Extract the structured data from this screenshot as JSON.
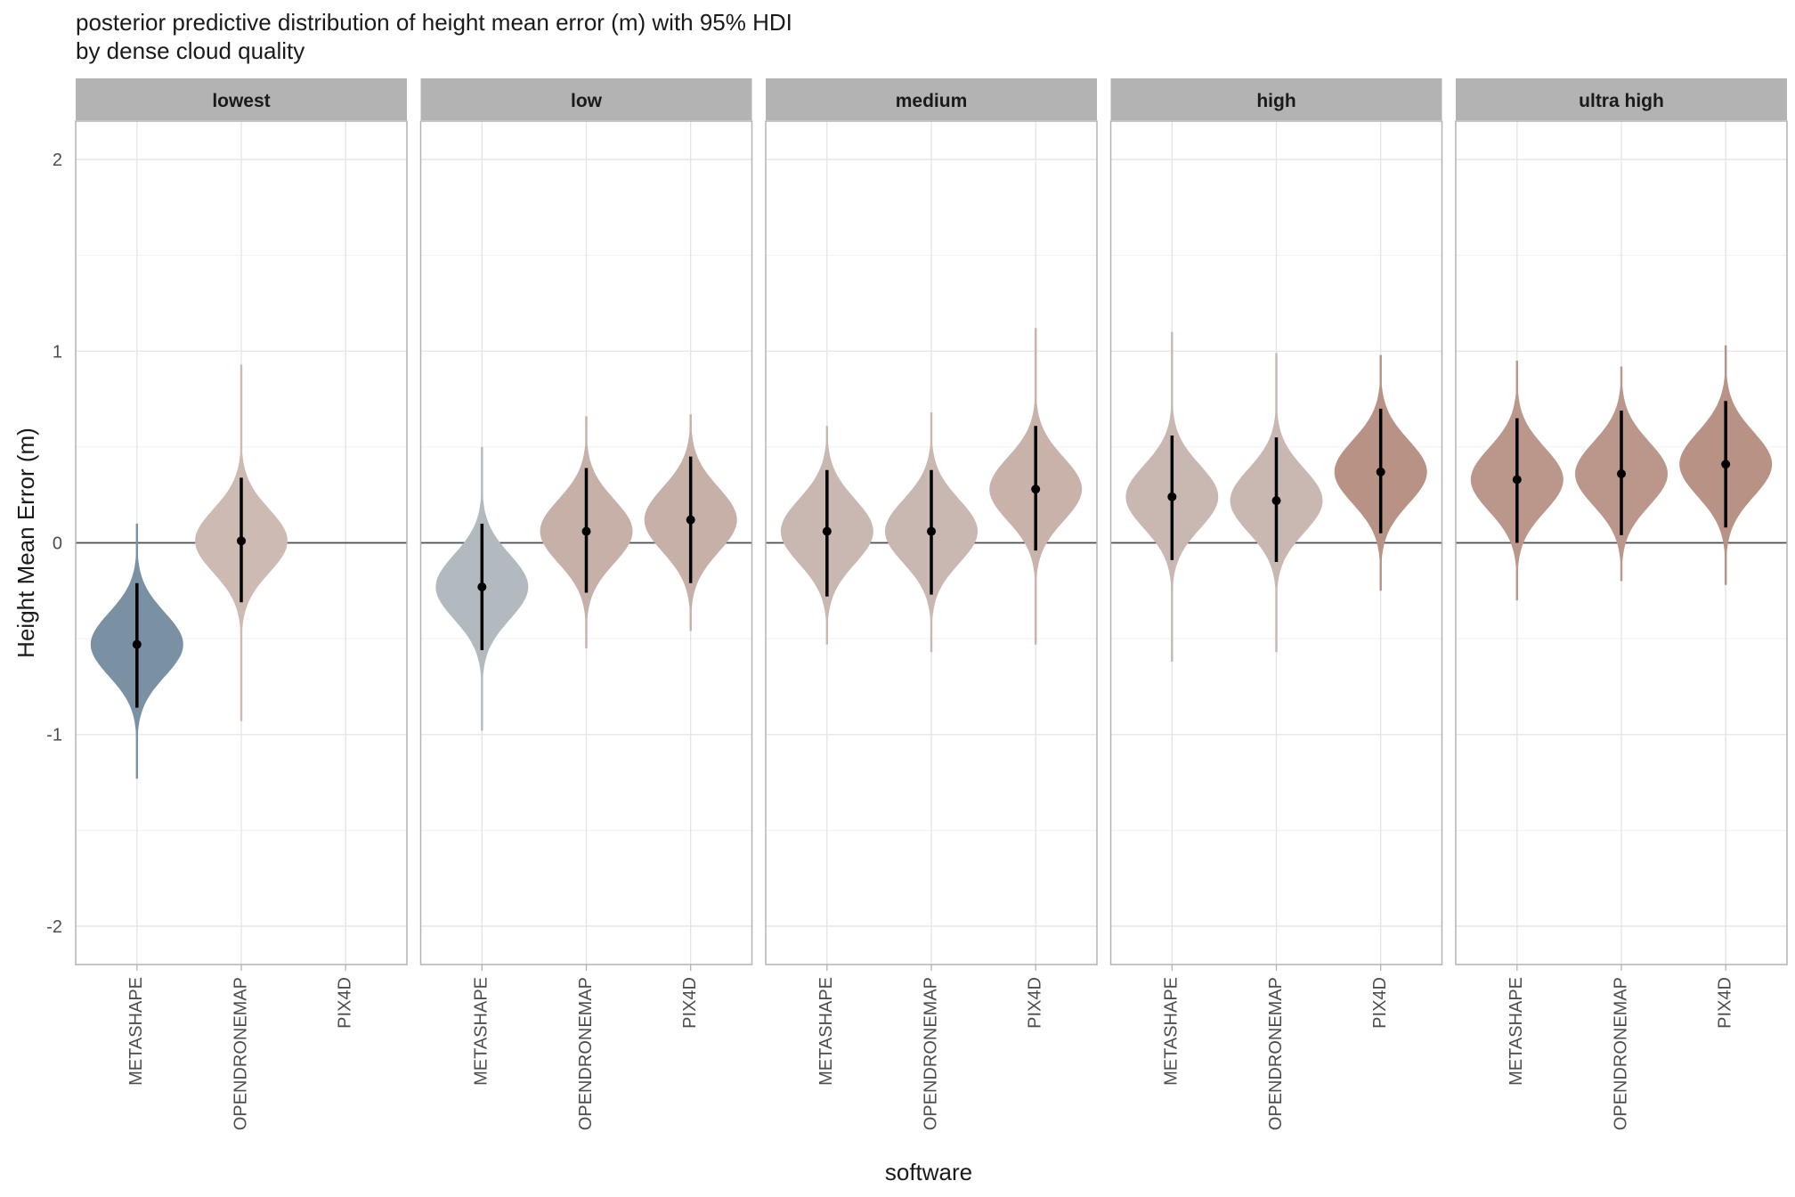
{
  "chart_data": {
    "type": "violin",
    "title": "posterior predictive distribution of height mean error (m) with 95% HDI",
    "subtitle": "by dense cloud quality",
    "xlabel": "software",
    "ylabel": "Height Mean Error (m)",
    "ylim": [
      -2.2,
      2.2
    ],
    "yticks": [
      -2,
      -1,
      0,
      1,
      2
    ],
    "ytick_labels": [
      "-2",
      "-1",
      "0",
      "1",
      "2"
    ],
    "reference_line_y": 0,
    "grid": true,
    "categories": [
      "METASHAPE",
      "OPENDRONEMAP",
      "PIX4D"
    ],
    "panels": [
      {
        "label": "lowest",
        "violins": [
          {
            "software": "METASHAPE",
            "median": -0.53,
            "hdi": [
              -0.86,
              -0.21
            ],
            "range": [
              -1.23,
              0.1
            ],
            "color": "#7a90a3"
          },
          {
            "software": "OPENDRONEMAP",
            "median": 0.01,
            "hdi": [
              -0.31,
              0.34
            ],
            "range": [
              -0.93,
              0.93
            ],
            "color": "#ccbab3"
          }
        ]
      },
      {
        "label": "low",
        "violins": [
          {
            "software": "METASHAPE",
            "median": -0.23,
            "hdi": [
              -0.56,
              0.1
            ],
            "range": [
              -0.98,
              0.5
            ],
            "color": "#b2b9bf"
          },
          {
            "software": "OPENDRONEMAP",
            "median": 0.06,
            "hdi": [
              -0.26,
              0.39
            ],
            "range": [
              -0.55,
              0.66
            ],
            "color": "#c6b0a8"
          },
          {
            "software": "PIX4D",
            "median": 0.12,
            "hdi": [
              -0.21,
              0.45
            ],
            "range": [
              -0.46,
              0.67
            ],
            "color": "#c6b0a8"
          }
        ]
      },
      {
        "label": "medium",
        "violins": [
          {
            "software": "METASHAPE",
            "median": 0.06,
            "hdi": [
              -0.28,
              0.38
            ],
            "range": [
              -0.53,
              0.61
            ],
            "color": "#c9b7b1"
          },
          {
            "software": "OPENDRONEMAP",
            "median": 0.06,
            "hdi": [
              -0.27,
              0.38
            ],
            "range": [
              -0.57,
              0.68
            ],
            "color": "#c9b7b1"
          },
          {
            "software": "PIX4D",
            "median": 0.28,
            "hdi": [
              -0.04,
              0.61
            ],
            "range": [
              -0.53,
              1.12
            ],
            "color": "#c9b2aa"
          }
        ]
      },
      {
        "label": "high",
        "violins": [
          {
            "software": "METASHAPE",
            "median": 0.24,
            "hdi": [
              -0.09,
              0.56
            ],
            "range": [
              -0.62,
              1.1
            ],
            "color": "#c9b7b1"
          },
          {
            "software": "OPENDRONEMAP",
            "median": 0.22,
            "hdi": [
              -0.1,
              0.55
            ],
            "range": [
              -0.57,
              0.99
            ],
            "color": "#c9b7b1"
          },
          {
            "software": "PIX4D",
            "median": 0.37,
            "hdi": [
              0.05,
              0.7
            ],
            "range": [
              -0.25,
              0.98
            ],
            "color": "#b79285"
          }
        ]
      },
      {
        "label": "ultra high",
        "violins": [
          {
            "software": "METASHAPE",
            "median": 0.33,
            "hdi": [
              0.0,
              0.65
            ],
            "range": [
              -0.3,
              0.95
            ],
            "color": "#bb978b"
          },
          {
            "software": "OPENDRONEMAP",
            "median": 0.36,
            "hdi": [
              0.04,
              0.69
            ],
            "range": [
              -0.2,
              0.92
            ],
            "color": "#bb978b"
          },
          {
            "software": "PIX4D",
            "median": 0.41,
            "hdi": [
              0.08,
              0.74
            ],
            "range": [
              -0.22,
              1.03
            ],
            "color": "#b79285"
          }
        ]
      }
    ]
  }
}
